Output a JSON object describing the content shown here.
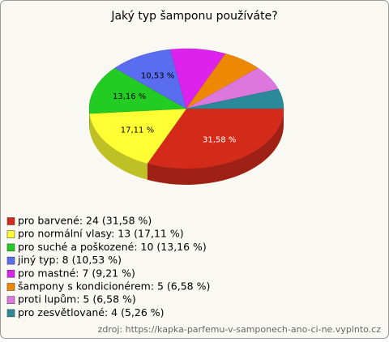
{
  "chart_data": {
    "type": "pie3d",
    "title": "Jaký typ šamponu používáte?",
    "categories": [
      "pro barvené: 24 (31,58 %)",
      "pro normální vlasy: 13 (17,11 %)",
      "pro suché a poškozené: 10 (13,16 %)",
      "jiný typ: 8 (10,53 %)",
      "pro mastné: 7 (9,21 %)",
      "šampony s kondicionérem: 5 (6,58 %)",
      "proti lupům: 5 (6,58 %)",
      "pro zesvětlované: 4 (5,26 %)"
    ],
    "values": [
      24,
      13,
      10,
      8,
      7,
      5,
      5,
      4
    ],
    "value_labels": [
      "31,58 %",
      "17,11 %",
      "13,16 %",
      "10,53 %",
      null,
      null,
      null,
      null
    ],
    "colors": [
      "#d42a1a",
      "#ffff33",
      "#22cc22",
      "#5a6cf0",
      "#dd22ee",
      "#ee8800",
      "#dd77dd",
      "#2a8a9a"
    ],
    "source": "zdroj: https://kapka-parfemu-v-samponech-ano-ci-ne.vyplnto.cz"
  }
}
